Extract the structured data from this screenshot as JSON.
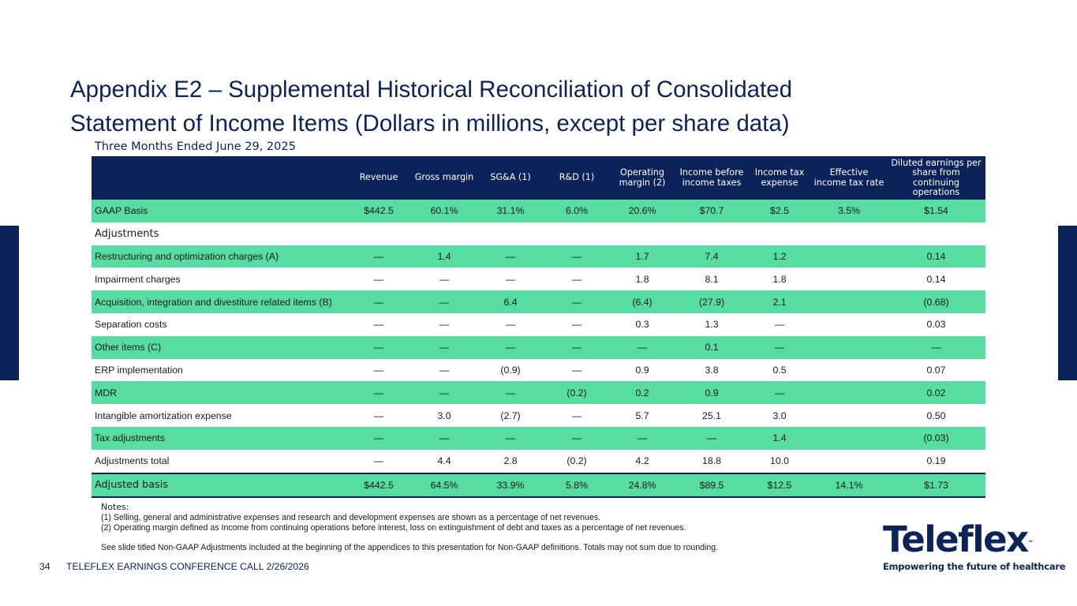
{
  "title": {
    "line1": "Appendix E2 – Supplemental Historical Reconciliation of Consolidated",
    "line2": "Statement of Income Items (Dollars in millions, except per share data)"
  },
  "subtitle": "Three Months Ended June 29, 2025",
  "columns": [
    "Revenue",
    "Gross margin",
    "SG&A (1)",
    "R&D (1)",
    "Operating margin (2)",
    "Income before income taxes",
    "Income tax expense",
    "Effective income tax rate",
    "Diluted earnings per share from continuing operations"
  ],
  "rows": [
    {
      "label": "GAAP Basis",
      "cells": [
        "$442.5",
        "60.1%",
        "31.1%",
        "6.0%",
        "20.6%",
        "$70.7",
        "$2.5",
        "3.5%",
        "$1.54"
      ]
    },
    {
      "label": "Adjustments",
      "cells": [
        "",
        "",
        "",
        "",
        "",
        "",
        "",
        "",
        ""
      ]
    },
    {
      "label": "Restructuring and optimization charges (A)",
      "cells": [
        "—",
        "1.4",
        "—",
        "—",
        "1.7",
        "7.4",
        "1.2",
        "",
        "0.14"
      ]
    },
    {
      "label": "Impairment charges",
      "cells": [
        "—",
        "—",
        "—",
        "—",
        "1.8",
        "8.1",
        "1.8",
        "",
        "0.14"
      ]
    },
    {
      "label": "Acquisition, integration and divestiture related items (B)",
      "cells": [
        "—",
        "—",
        "6.4",
        "—",
        "(6.4)",
        "(27.9)",
        "2.1",
        "",
        "(0.68)"
      ]
    },
    {
      "label": "Separation costs",
      "cells": [
        "—",
        "—",
        "—",
        "—",
        "0.3",
        "1.3",
        "—",
        "",
        "0.03"
      ]
    },
    {
      "label": "Other items (C)",
      "cells": [
        "—",
        "—",
        "—",
        "—",
        "—",
        "0.1",
        "—",
        "",
        "—"
      ]
    },
    {
      "label": "ERP implementation",
      "cells": [
        "—",
        "—",
        "(0.9)",
        "—",
        "0.9",
        "3.8",
        "0.5",
        "",
        "0.07"
      ]
    },
    {
      "label": "MDR",
      "cells": [
        "—",
        "—",
        "—",
        "(0.2)",
        "0.2",
        "0.9",
        "—",
        "",
        "0.02"
      ]
    },
    {
      "label": "Intangible amortization expense",
      "cells": [
        "—",
        "3.0",
        "(2.7)",
        "—",
        "5.7",
        "25.1",
        "3.0",
        "",
        "0.50"
      ]
    },
    {
      "label": "Tax adjustments",
      "cells": [
        "—",
        "—",
        "—",
        "—",
        "—",
        "—",
        "1.4",
        "",
        "(0.03)"
      ]
    },
    {
      "label": "Adjustments total",
      "cells": [
        "—",
        "4.4",
        "2.8",
        "(0.2)",
        "4.2",
        "18.8",
        "10.0",
        "",
        "0.19"
      ]
    },
    {
      "label": "Adjusted basis",
      "cells": [
        "$442.5",
        "64.5%",
        "33.9%",
        "5.8%",
        "24.8%",
        "$89.5",
        "$12.5",
        "14.1%",
        "$1.73"
      ]
    }
  ],
  "notes": {
    "heading": "Notes:",
    "note1": "(1) Selling, general and administrative expenses and research and development expenses are shown as a percentage of net revenues.",
    "note2": "(2) Operating margin defined as Income from continuing operations before interest, loss on extinguishment of debt and taxes as a percentage of net revenues.",
    "note3": "See slide titled Non-GAAP Adjustments included at the beginning of the appendices to this presentation for Non-GAAP definitions. Totals may not sum due to rounding."
  },
  "footer": {
    "page": "34",
    "text": "TELEFLEX EARNINGS CONFERENCE CALL 2/26/2026"
  },
  "logo": {
    "word": "Teleflex",
    "tm": "™",
    "tagline": "Empowering the future of healthcare"
  },
  "colors": {
    "navy": "#0b2359",
    "green": "#57dca1"
  }
}
